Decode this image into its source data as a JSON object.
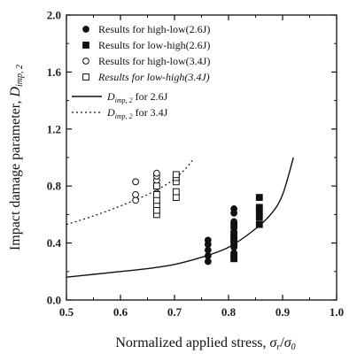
{
  "chart_data": {
    "type": "scatter",
    "title": "",
    "xlabel": {
      "main": "Normalized applied stress, ",
      "num": "σ",
      "num_sub": "r",
      "slash": "/",
      "den": "σ",
      "den_sub": "0"
    },
    "ylabel": {
      "main": "Impact damage parameter, ",
      "sym": "D",
      "sub": "imp, 2"
    },
    "xlim": [
      0.5,
      1.0
    ],
    "ylim": [
      0.0,
      2.0
    ],
    "xticks": [
      "0.5",
      "0.6",
      "0.7",
      "0.8",
      "0.9",
      "1.0"
    ],
    "yticks": [
      "0.0",
      "0.4",
      "0.8",
      "1.2",
      "1.6",
      "2.0"
    ],
    "x_minor_step": 0.05,
    "y_minor_step": 0.2,
    "legend_position": "top-left",
    "series": [
      {
        "name": "Results for high-low(2.6J)",
        "marker": "circle-filled",
        "points": [
          [
            0.762,
            0.27
          ],
          [
            0.762,
            0.31
          ],
          [
            0.762,
            0.35
          ],
          [
            0.762,
            0.39
          ],
          [
            0.762,
            0.42
          ],
          [
            0.81,
            0.33
          ],
          [
            0.81,
            0.37
          ],
          [
            0.81,
            0.41
          ],
          [
            0.81,
            0.44
          ],
          [
            0.81,
            0.48
          ],
          [
            0.81,
            0.55
          ],
          [
            0.81,
            0.61
          ],
          [
            0.81,
            0.64
          ]
        ]
      },
      {
        "name": "Results for low-high(2.6J)",
        "marker": "square-filled",
        "points": [
          [
            0.81,
            0.29
          ],
          [
            0.81,
            0.31
          ],
          [
            0.81,
            0.4
          ],
          [
            0.81,
            0.43
          ],
          [
            0.81,
            0.46
          ],
          [
            0.81,
            0.52
          ],
          [
            0.857,
            0.53
          ],
          [
            0.857,
            0.58
          ],
          [
            0.857,
            0.62
          ],
          [
            0.857,
            0.65
          ],
          [
            0.857,
            0.72
          ]
        ]
      },
      {
        "name": "Results for high-low(3.4J)",
        "marker": "circle-open",
        "points": [
          [
            0.628,
            0.7
          ],
          [
            0.628,
            0.74
          ],
          [
            0.628,
            0.83
          ],
          [
            0.667,
            0.75
          ],
          [
            0.667,
            0.8
          ],
          [
            0.667,
            0.84
          ],
          [
            0.667,
            0.87
          ],
          [
            0.667,
            0.89
          ]
        ]
      },
      {
        "name": "Results for low-high(3.4J)",
        "marker": "square-open",
        "points": [
          [
            0.667,
            0.6
          ],
          [
            0.667,
            0.63
          ],
          [
            0.667,
            0.67
          ],
          [
            0.667,
            0.7
          ],
          [
            0.667,
            0.74
          ],
          [
            0.667,
            0.8
          ],
          [
            0.703,
            0.72
          ],
          [
            0.703,
            0.76
          ],
          [
            0.703,
            0.83
          ],
          [
            0.703,
            0.86
          ],
          [
            0.703,
            0.88
          ]
        ]
      }
    ],
    "curves": [
      {
        "name_sym": "D",
        "name_sub": "imp, 2",
        "name_suffix": " for 2.6J",
        "style": "solid",
        "points": [
          [
            0.5,
            0.16
          ],
          [
            0.55,
            0.18
          ],
          [
            0.6,
            0.2
          ],
          [
            0.65,
            0.22
          ],
          [
            0.7,
            0.25
          ],
          [
            0.75,
            0.3
          ],
          [
            0.8,
            0.37
          ],
          [
            0.85,
            0.5
          ],
          [
            0.88,
            0.61
          ],
          [
            0.9,
            0.74
          ],
          [
            0.92,
            1.0
          ]
        ]
      },
      {
        "name_sym": "D",
        "name_sub": "imp, 2",
        "name_suffix": " for 3.4J",
        "style": "dotted",
        "points": [
          [
            0.5,
            0.53
          ],
          [
            0.55,
            0.59
          ],
          [
            0.6,
            0.66
          ],
          [
            0.65,
            0.74
          ],
          [
            0.68,
            0.8
          ],
          [
            0.7,
            0.85
          ],
          [
            0.72,
            0.92
          ],
          [
            0.735,
            0.99
          ]
        ]
      }
    ]
  }
}
